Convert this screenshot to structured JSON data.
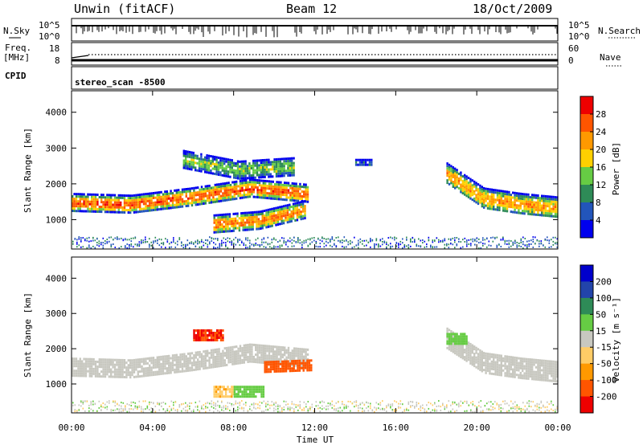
{
  "header": {
    "station": "Unwin (fitACF)",
    "beam": "Beam 12",
    "date": "18/Oct/2009"
  },
  "top_panels": {
    "nsky_label": "N.Sky",
    "nsky_ticks": [
      "10^5",
      "10^0"
    ],
    "nsearch_label": "N.Search",
    "freq_label_1": "Freq.",
    "freq_label_2": "[MHz]",
    "freq_ticks": [
      "18",
      "8"
    ],
    "nave_label": "Nave",
    "nave_ticks": [
      "60",
      "0"
    ],
    "cpid_label": "CPID",
    "cpid_value": "stereo_scan -8500"
  },
  "colors": {
    "power_scale": [
      "#0000ee",
      "#2255bb",
      "#2e8b57",
      "#66cc44",
      "#ffd000",
      "#ff9900",
      "#ff5500",
      "#ee0000"
    ],
    "velocity_scale": [
      "#ee0000",
      "#ff5500",
      "#ff9900",
      "#ffcc66",
      "#c8c8c0",
      "#66cc44",
      "#2e8b57",
      "#2244aa",
      "#0000cc"
    ]
  },
  "chart_data": [
    {
      "type": "heatmap",
      "name": "power_panel",
      "ylabel": "Slant Range [km]",
      "xlabel": "Time UT",
      "x_ticks": [
        "00:00",
        "04:00",
        "08:00",
        "12:00",
        "16:00",
        "20:00",
        "00:00"
      ],
      "xlim_hours": [
        0,
        24
      ],
      "y_ticks": [
        1000,
        2000,
        3000,
        4000
      ],
      "ylim": [
        180,
        4600
      ],
      "colorbar": {
        "label": "Power [dB]",
        "ticks": [
          4,
          8,
          12,
          16,
          20,
          24,
          28
        ],
        "range": [
          0,
          32
        ]
      },
      "regions": [
        {
          "hours": [
            0,
            11.7
          ],
          "center_km": [
            1500,
            1450,
            1650,
            1900,
            1750
          ],
          "width_km": 500,
          "peak_db": 26
        },
        {
          "hours": [
            7.0,
            11.5
          ],
          "center_km": [
            900,
            1000,
            1300
          ],
          "width_km": 500,
          "peak_db": 24
        },
        {
          "hours": [
            5.5,
            11.0
          ],
          "center_km": [
            2700,
            2400,
            2500
          ],
          "width_km": 500,
          "peak_db": 14
        },
        {
          "hours": [
            18.5,
            24
          ],
          "center_km": [
            2300,
            1600,
            1450,
            1350
          ],
          "width_km": 600,
          "peak_db": 22
        },
        {
          "hours": [
            14.0,
            14.8
          ],
          "center_km": [
            2600
          ],
          "width_km": 200,
          "peak_db": 6
        }
      ]
    },
    {
      "type": "heatmap",
      "name": "velocity_panel",
      "ylabel": "Slant Range [km]",
      "xlabel": "Time UT",
      "x_ticks": [
        "00:00",
        "04:00",
        "08:00",
        "12:00",
        "16:00",
        "20:00",
        "00:00"
      ],
      "xlim_hours": [
        0,
        24
      ],
      "y_ticks": [
        1000,
        2000,
        3000,
        4000
      ],
      "ylim": [
        180,
        4600
      ],
      "colorbar": {
        "label": "Velocity [m s^-1]",
        "ticks": [
          -200,
          -100,
          -50,
          -15,
          15,
          50,
          100,
          200
        ],
        "range": [
          -250,
          250
        ]
      },
      "regions": [
        {
          "hours": [
            0,
            11.7
          ],
          "center_km": [
            1500,
            1450,
            1650,
            1900,
            1750
          ],
          "width_km": 500,
          "velocity": 0
        },
        {
          "hours": [
            9.5,
            11.8
          ],
          "center_km": [
            1500,
            1550
          ],
          "width_km": 300,
          "velocity": -120
        },
        {
          "hours": [
            7.0,
            8.0
          ],
          "center_km": [
            800
          ],
          "width_km": 300,
          "velocity": -40
        },
        {
          "hours": [
            8.0,
            9.5
          ],
          "center_km": [
            800
          ],
          "width_km": 300,
          "velocity": 30
        },
        {
          "hours": [
            6.0,
            7.5
          ],
          "center_km": [
            2400
          ],
          "width_km": 300,
          "velocity": -200
        },
        {
          "hours": [
            18.5,
            24
          ],
          "center_km": [
            2300,
            1600,
            1450,
            1350
          ],
          "width_km": 600,
          "velocity": 0
        },
        {
          "hours": [
            18.5,
            19.5
          ],
          "center_km": [
            2300
          ],
          "width_km": 300,
          "velocity": 30
        }
      ]
    }
  ],
  "colorbar_power": {
    "label": "Power [dB]",
    "ticks": [
      "28",
      "24",
      "20",
      "16",
      "12",
      "8",
      "4"
    ]
  },
  "colorbar_velocity": {
    "label": "Velocity [m s⁻¹]",
    "ticks": [
      "200",
      "100",
      "50",
      "15",
      "-15",
      "-50",
      "-100",
      "-200"
    ]
  },
  "axes": {
    "ylabel": "Slant Range [km]",
    "y_ticks": [
      "4000",
      "3000",
      "2000",
      "1000"
    ],
    "x_ticks": [
      "00:00",
      "04:00",
      "08:00",
      "12:00",
      "16:00",
      "20:00",
      "00:00"
    ],
    "xlabel": "Time UT"
  }
}
